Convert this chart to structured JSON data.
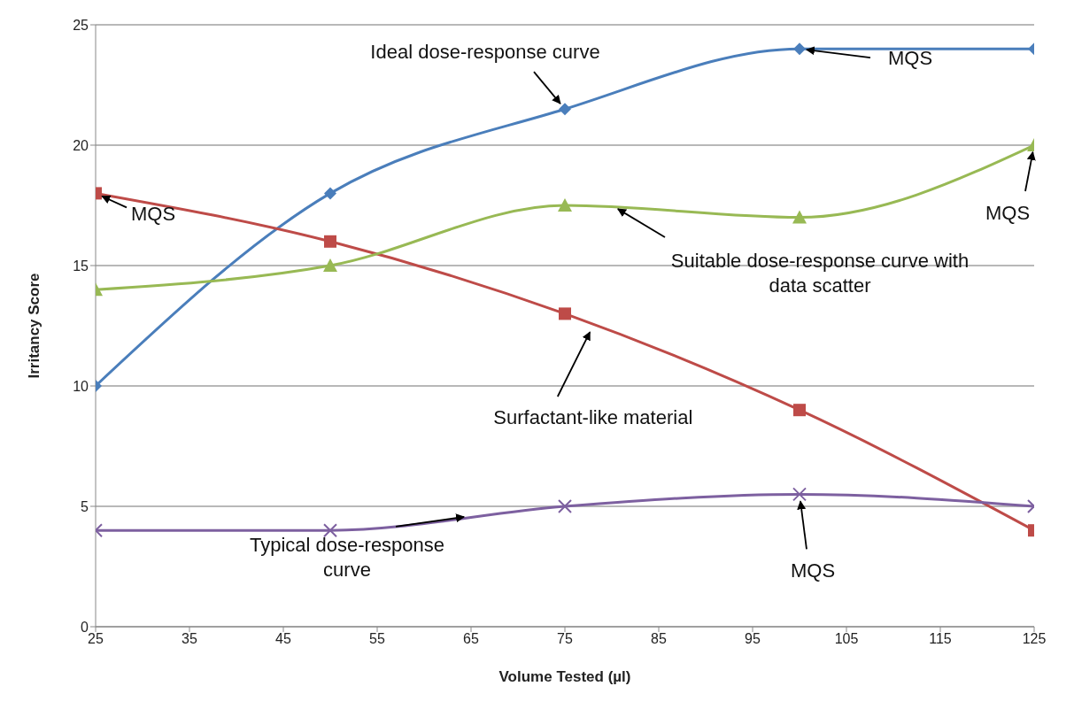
{
  "chart_data": {
    "type": "line",
    "xlabel": "Volume Tested (µl)",
    "ylabel": "Irritancy Score",
    "x": [
      25,
      50,
      75,
      100,
      125
    ],
    "series": [
      {
        "color": "#4a7ebb",
        "values": [
          10,
          18,
          21.5,
          24,
          24
        ],
        "marker": "diamond"
      },
      {
        "color": "#be4b48",
        "values": [
          18,
          16,
          13,
          9,
          4
        ],
        "marker": "square"
      },
      {
        "color": "#98b954",
        "values": [
          14,
          15,
          17.5,
          17,
          20
        ],
        "marker": "triangle"
      },
      {
        "color": "#7d60a0",
        "values": [
          4,
          4,
          5,
          5.5,
          5
        ],
        "marker": "cross"
      }
    ],
    "xlim": [
      25,
      125
    ],
    "xticks": [
      25,
      35,
      45,
      55,
      65,
      75,
      85,
      95,
      105,
      115,
      125
    ],
    "ylim": [
      0,
      25
    ],
    "yticks": [
      0,
      5,
      10,
      15,
      20,
      25
    ],
    "grid": "y",
    "legend": false,
    "line_style": "solid",
    "annotations": [
      {
        "text": "Ideal dose-response curve",
        "x": 75,
        "y": 21.5
      },
      {
        "text": "MQS",
        "x": 100,
        "y": 24
      },
      {
        "text": "MQS",
        "x": 25,
        "y": 18
      },
      {
        "text": "MQS",
        "x": 125,
        "y": 20
      },
      {
        "text": "Suitable dose-response curve with data scatter",
        "x": 80,
        "y": 17.5
      },
      {
        "text": "Surfactant-like material",
        "x": 78,
        "y": 12.5
      },
      {
        "text": "Typical dose-response curve",
        "x": 65,
        "y": 4.6
      },
      {
        "text": "MQS",
        "x": 100,
        "y": 5.5
      }
    ]
  }
}
